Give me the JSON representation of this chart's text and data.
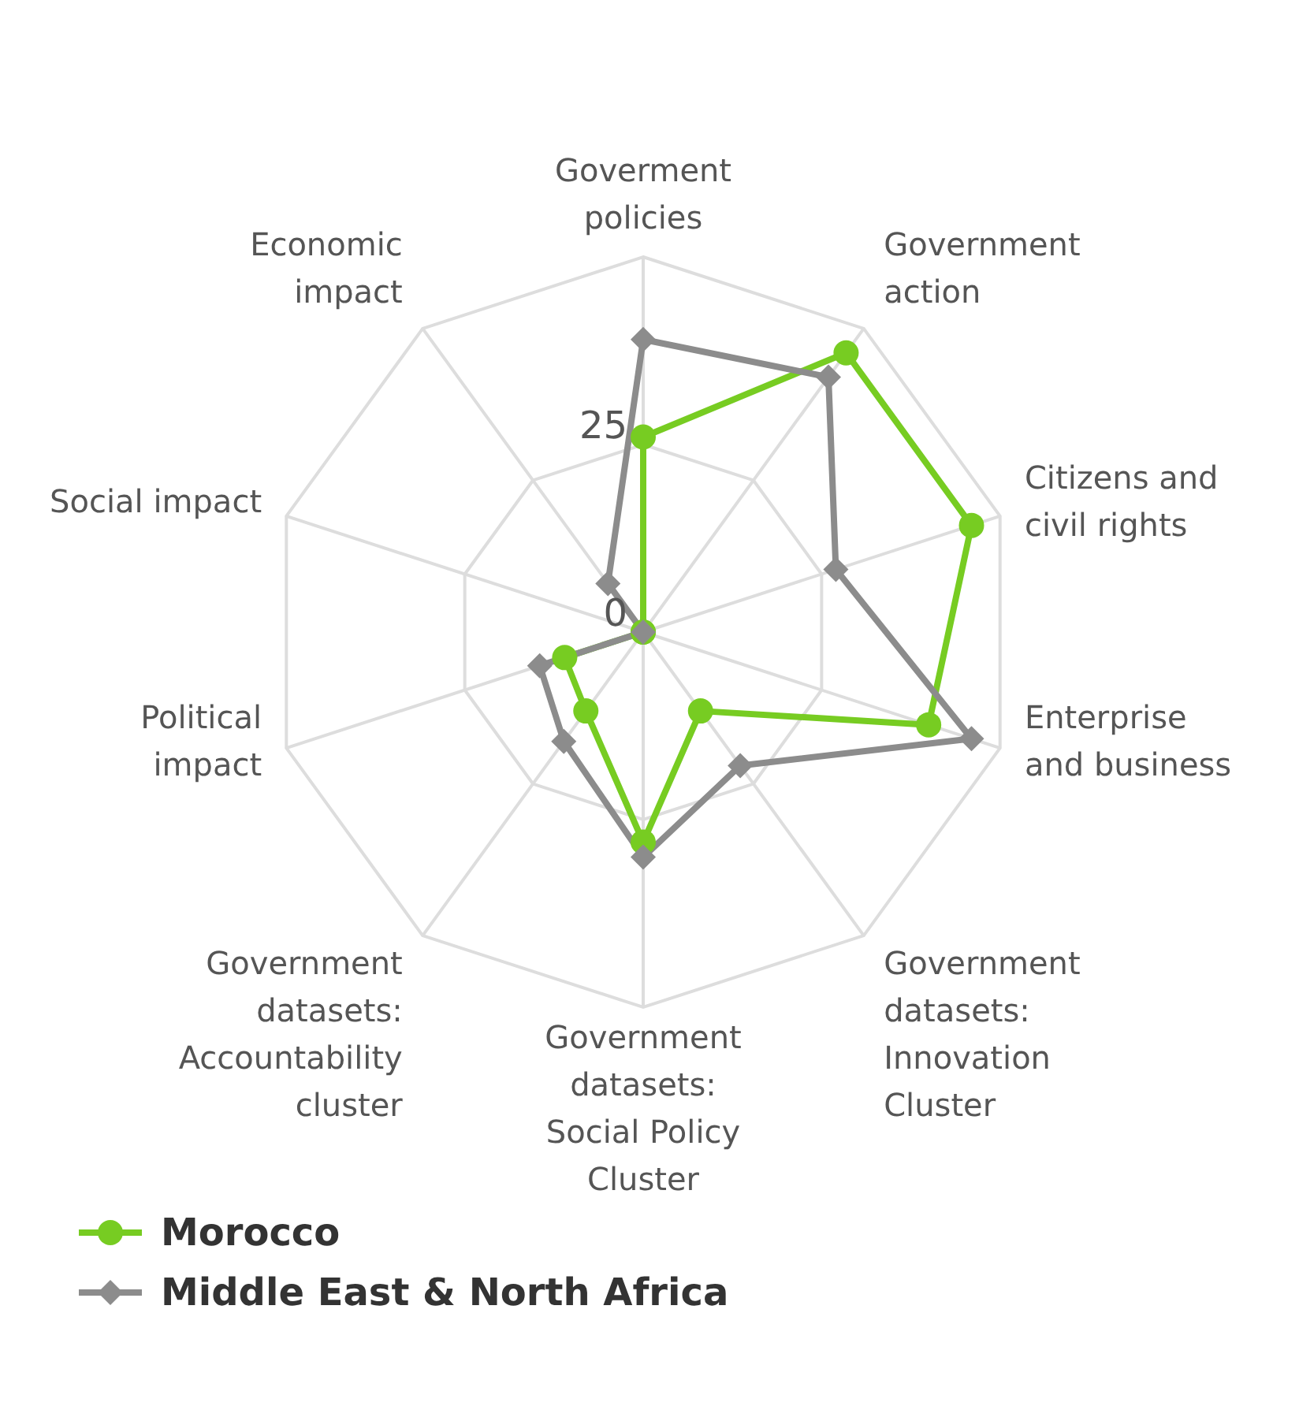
{
  "chart_data": {
    "type": "radar",
    "categories": [
      "Goverment policies",
      "Government action",
      "Citizens and civil rights",
      "Enterprise and business",
      "Government datasets: Innovation Cluster",
      "Government datasets: Social Policy Cluster",
      "Government datasets: Accountability cluster",
      "Political impact",
      "Social impact",
      "Economic impact"
    ],
    "series": [
      {
        "name": "Morocco",
        "color": "#77cc22",
        "marker": "circle",
        "values": [
          26,
          46,
          46,
          40,
          13,
          28,
          13,
          11,
          0,
          0
        ]
      },
      {
        "name": "Middle East & North Africa",
        "color": "#8c8c8c",
        "marker": "diamond",
        "values": [
          39,
          42,
          27,
          46,
          22,
          30,
          18,
          14.5,
          0,
          8
        ]
      }
    ],
    "ylim": [
      0,
      50
    ],
    "yticks": [
      0,
      25
    ],
    "grid": true,
    "legend": "bottom left"
  }
}
